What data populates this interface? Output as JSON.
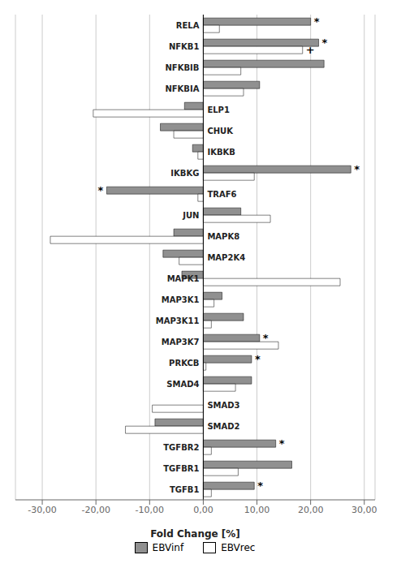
{
  "chart_data": {
    "type": "bar",
    "orientation": "horizontal",
    "xlabel": "Fold Change [%]",
    "categories": [
      "RELA",
      "NFKB1",
      "NFKBIB",
      "NFKBIA",
      "ELP1",
      "CHUK",
      "IKBKB",
      "IKBKG",
      "TRAF6",
      "JUN",
      "MAPK8",
      "MAP2K4",
      "MAPK1",
      "MAP3K1",
      "MAP3K11",
      "MAP3K7",
      "PRKCB",
      "SMAD4",
      "SMAD3",
      "SMAD2",
      "TGFBR2",
      "TGFBR1",
      "TGFB1"
    ],
    "series": [
      {
        "name": "EBVinf",
        "color": "#909090",
        "values": [
          20.0,
          21.5,
          22.5,
          10.5,
          -3.5,
          -8.0,
          -2.0,
          27.5,
          -18.0,
          7.0,
          -5.5,
          -7.5,
          -4.0,
          3.5,
          7.5,
          10.5,
          9.0,
          9.0,
          0.0,
          -9.0,
          13.5,
          16.5,
          9.5
        ]
      },
      {
        "name": "EBVrec",
        "color": "#ffffff",
        "values": [
          3.0,
          18.5,
          7.0,
          7.5,
          -20.5,
          -5.5,
          -1.0,
          9.5,
          -1.0,
          12.5,
          -28.5,
          -4.5,
          25.5,
          2.0,
          1.5,
          14.0,
          0.5,
          6.0,
          -9.5,
          -14.5,
          1.5,
          6.5,
          1.5
        ]
      }
    ],
    "xlim": [
      -35,
      32
    ],
    "xticks": [
      {
        "value": -30,
        "label": "-30,00"
      },
      {
        "value": -20,
        "label": "-20,00"
      },
      {
        "value": -10,
        "label": "-10,00"
      },
      {
        "value": 0,
        "label": "0,00"
      },
      {
        "value": 10,
        "label": "10,00"
      },
      {
        "value": 20,
        "label": "20,00"
      },
      {
        "value": 30,
        "label": "30,00"
      }
    ],
    "grid": true,
    "legend": "bottom",
    "annotations": [
      {
        "text": "*",
        "category": "RELA",
        "series": "EBVinf"
      },
      {
        "text": "*",
        "category": "NFKB1",
        "series": "EBVinf"
      },
      {
        "text": "*",
        "category": "IKBKG",
        "series": "EBVinf"
      },
      {
        "text": "*",
        "category": "MAP3K7",
        "series": "EBVinf"
      },
      {
        "text": "*",
        "category": "PRKCB",
        "series": "EBVinf"
      },
      {
        "text": "*",
        "category": "TGFBR2",
        "series": "EBVinf"
      },
      {
        "text": "*",
        "category": "TGFB1",
        "series": "EBVinf"
      },
      {
        "text": "+",
        "category": "NFKB1",
        "series": "EBVrec"
      },
      {
        "text": "*",
        "category": "TRAF6",
        "series": "EBVinf"
      }
    ]
  }
}
